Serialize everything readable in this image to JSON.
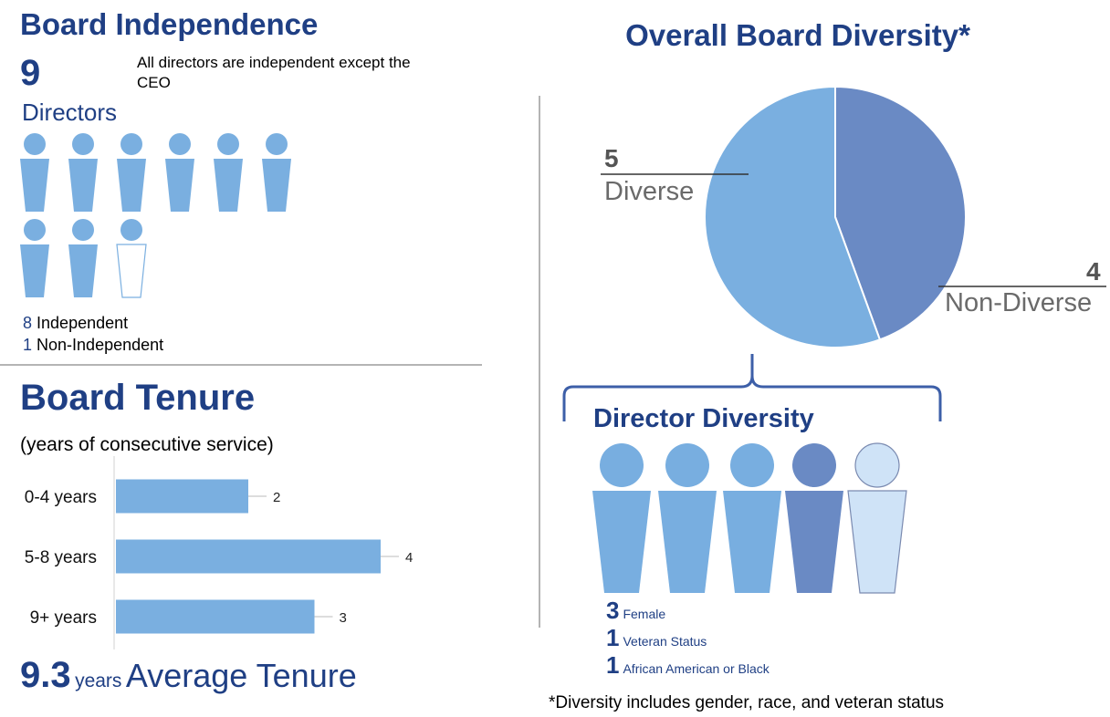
{
  "board_independence": {
    "title": "Board Independence",
    "count": "9",
    "count_label": "Directors",
    "note": "All directors are independent except the CEO",
    "legend": [
      {
        "num": "8",
        "label": "Independent"
      },
      {
        "num": "1",
        "label": "Non-Independent"
      }
    ],
    "independent": 8,
    "non_independent": 1,
    "colors": {
      "filled": "#7aafe0",
      "outline": "#7aafe0"
    }
  },
  "board_tenure": {
    "title": "Board Tenure",
    "subtitle": "(years of consecutive service)",
    "average_value": "9.3",
    "average_unit": "years",
    "average_label": "Average Tenure"
  },
  "overall_diversity": {
    "title": "Overall Board Diversity*",
    "diverse_num": "5",
    "diverse_label": "Diverse",
    "non_diverse_num": "4",
    "non_diverse_label": "Non-Diverse"
  },
  "director_diversity": {
    "title": "Director Diversity",
    "items": [
      {
        "num": "3",
        "label": "Female"
      },
      {
        "num": "1",
        "label": "Veteran Status"
      },
      {
        "num": "1",
        "label": "African American or Black"
      }
    ],
    "figure_colors": [
      "#78aee0",
      "#78aee0",
      "#78aee0",
      "#6a8ac4",
      "#cfe3f7"
    ]
  },
  "footnote": "*Diversity includes gender, race, and veteran status",
  "chart_data": [
    {
      "type": "bar",
      "orientation": "horizontal",
      "categories": [
        "0-4 years",
        "5-8 years",
        "9+ years"
      ],
      "values": [
        2,
        4,
        3
      ],
      "xlim": [
        0,
        4
      ],
      "color": "#7aafe0"
    },
    {
      "type": "pie",
      "labels": [
        "Non-Diverse",
        "Diverse"
      ],
      "values": [
        4,
        5
      ],
      "colors": [
        "#6a8ac4",
        "#7aafe0"
      ]
    }
  ]
}
